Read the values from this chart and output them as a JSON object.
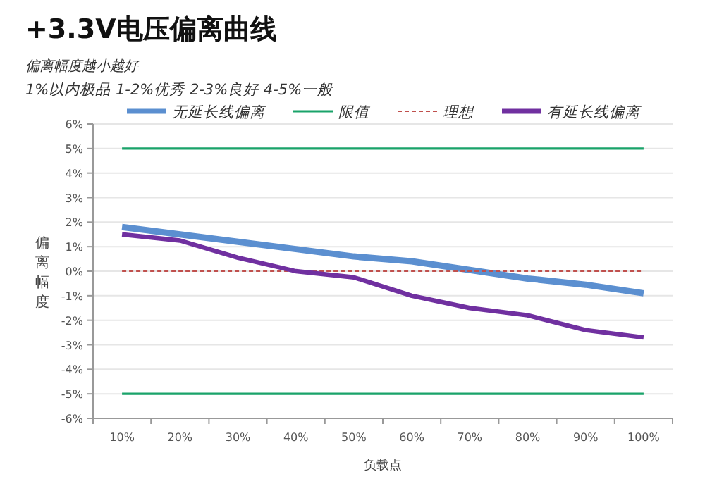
{
  "chart_data": {
    "type": "line",
    "title": "+3.3V电压偏离曲线",
    "subtitle": "偏离幅度越小越好",
    "annotations": [
      "1%以内极品 1-2%优秀  2-3%良好 4-5%一般"
    ],
    "xlabel": "负载点",
    "ylabel": "偏离幅度",
    "categories": [
      "10%",
      "20%",
      "30%",
      "40%",
      "50%",
      "60%",
      "70%",
      "80%",
      "90%",
      "100%"
    ],
    "ylim": [
      -6,
      6
    ],
    "yticks": [
      {
        "value": -6,
        "label": "-6%"
      },
      {
        "value": -5,
        "label": "-5%"
      },
      {
        "value": -4,
        "label": "-4%"
      },
      {
        "value": -3,
        "label": "-3%"
      },
      {
        "value": -2,
        "label": "-2%"
      },
      {
        "value": -1,
        "label": "-1%"
      },
      {
        "value": 0,
        "label": "0%"
      },
      {
        "value": 1,
        "label": "1%"
      },
      {
        "value": 2,
        "label": "2%"
      },
      {
        "value": 3,
        "label": "3%"
      },
      {
        "value": 4,
        "label": "4%"
      },
      {
        "value": 5,
        "label": "5%"
      },
      {
        "value": 6,
        "label": "6%"
      }
    ],
    "grid": "y",
    "legend": "top",
    "marker": "none",
    "series": [
      {
        "name": "无延长线偏离",
        "color": "#5b8fd0",
        "values": [
          1.8,
          1.5,
          1.2,
          0.9,
          0.6,
          0.4,
          0.05,
          -0.3,
          -0.55,
          -0.9
        ]
      },
      {
        "name": "限值",
        "color": "#1aa36a",
        "values": [
          5,
          5,
          5,
          5,
          5,
          5,
          5,
          5,
          5,
          5
        ]
      },
      {
        "color": "#1aa36a",
        "values": [
          -5,
          -5,
          -5,
          -5,
          -5,
          -5,
          -5,
          -5,
          -5,
          -5
        ]
      },
      {
        "name": "理想",
        "color": "#c0504d",
        "line_style": "dashed",
        "values": [
          0,
          0,
          0,
          0,
          0,
          0,
          0,
          0,
          0,
          0
        ]
      },
      {
        "name": "有延长线偏离",
        "color": "#7030a0",
        "values": [
          1.5,
          1.25,
          0.55,
          0,
          -0.25,
          -1.0,
          -1.5,
          -1.8,
          -2.4,
          -2.7
        ]
      }
    ]
  }
}
